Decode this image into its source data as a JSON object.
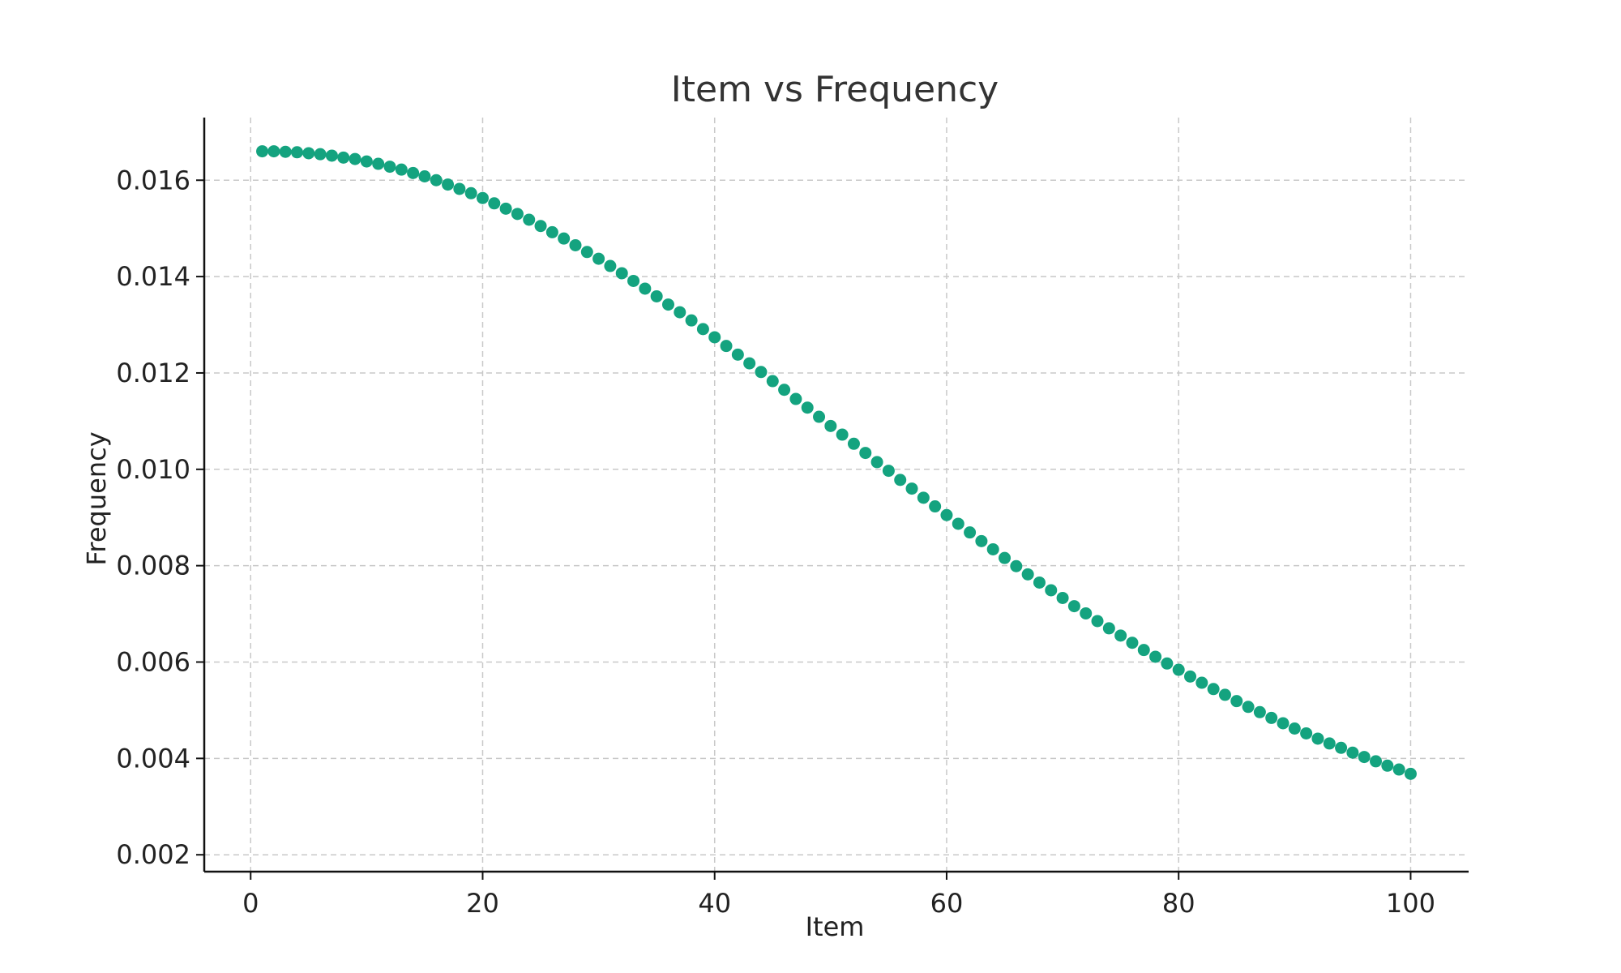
{
  "chart_data": {
    "type": "scatter",
    "title": "Item vs Frequency",
    "xlabel": "Item",
    "ylabel": "Frequency",
    "xlim": [
      -4,
      105
    ],
    "ylim": [
      0.00165,
      0.0173
    ],
    "xticks": [
      0,
      20,
      40,
      60,
      80,
      100
    ],
    "yticks": [
      0.002,
      0.004,
      0.006,
      0.008,
      0.01,
      0.012,
      0.014,
      0.016
    ],
    "ytick_labels": [
      "0.002",
      "0.004",
      "0.006",
      "0.008",
      "0.010",
      "0.012",
      "0.014",
      "0.016"
    ],
    "grid": true,
    "legend": "none",
    "series": [
      {
        "color": "#14a37f",
        "x": [
          1,
          2,
          3,
          4,
          5,
          6,
          7,
          8,
          9,
          10,
          11,
          12,
          13,
          14,
          15,
          16,
          17,
          18,
          19,
          20,
          21,
          22,
          23,
          24,
          25,
          26,
          27,
          28,
          29,
          30,
          31,
          32,
          33,
          34,
          35,
          36,
          37,
          38,
          39,
          40,
          41,
          42,
          43,
          44,
          45,
          46,
          47,
          48,
          49,
          50,
          51,
          52,
          53,
          54,
          55,
          56,
          57,
          58,
          59,
          60,
          61,
          62,
          63,
          64,
          65,
          66,
          67,
          68,
          69,
          70,
          71,
          72,
          73,
          74,
          75,
          76,
          77,
          78,
          79,
          80,
          81,
          82,
          83,
          84,
          85,
          86,
          87,
          88,
          89,
          90,
          91,
          92,
          93,
          94,
          95,
          96,
          97,
          98,
          99,
          100
        ],
        "y": [
          0.0166,
          0.0166,
          0.01659,
          0.01658,
          0.01656,
          0.01654,
          0.01651,
          0.01647,
          0.01644,
          0.01639,
          0.01634,
          0.01628,
          0.01622,
          0.01615,
          0.01608,
          0.016,
          0.01591,
          0.01582,
          0.01573,
          0.01563,
          0.01552,
          0.01541,
          0.0153,
          0.01518,
          0.01505,
          0.01492,
          0.01479,
          0.01465,
          0.01451,
          0.01437,
          0.01422,
          0.01407,
          0.01391,
          0.01375,
          0.01359,
          0.01342,
          0.01326,
          0.01309,
          0.01291,
          0.01274,
          0.01256,
          0.01238,
          0.0122,
          0.01202,
          0.01183,
          0.01165,
          0.01146,
          0.01128,
          0.01109,
          0.0109,
          0.01072,
          0.01053,
          0.01034,
          0.01015,
          0.00997,
          0.00978,
          0.0096,
          0.00941,
          0.00923,
          0.00905,
          0.00887,
          0.00869,
          0.00851,
          0.00834,
          0.00816,
          0.00799,
          0.00782,
          0.00765,
          0.00749,
          0.00733,
          0.00716,
          0.00701,
          0.00685,
          0.0067,
          0.00655,
          0.0064,
          0.00625,
          0.00611,
          0.00597,
          0.00584,
          0.0057,
          0.00557,
          0.00544,
          0.00532,
          0.00519,
          0.00507,
          0.00496,
          0.00484,
          0.00473,
          0.00462,
          0.00452,
          0.00441,
          0.00431,
          0.00422,
          0.00412,
          0.00403,
          0.00394,
          0.00385,
          0.00377,
          0.00368
        ]
      }
    ]
  }
}
